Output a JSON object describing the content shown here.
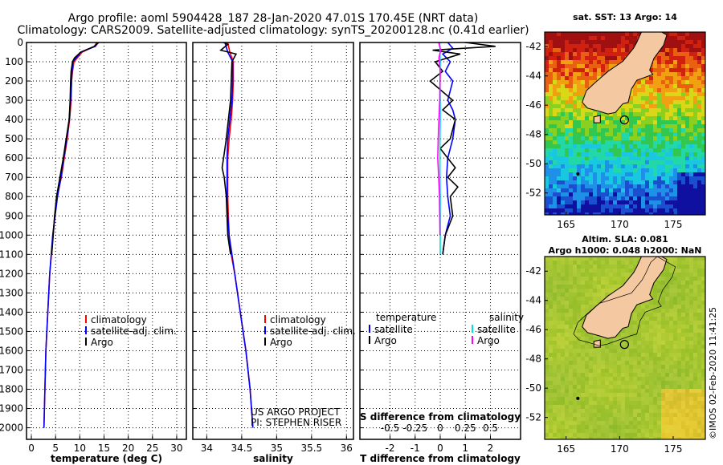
{
  "header": {
    "line1": "Argo profile: aoml 5904428_187 28-Jan-2020 47.01S 170.45E (NRT data)",
    "line2": "Climatology: CARS2009. Satellite-adjusted climatology: synTS_20200128.nc (0.41d earlier)"
  },
  "colors": {
    "climatology": "#ff0000",
    "satellite": "#0000ff",
    "argo": "#000000",
    "sat_salinity": "#00e0e0",
    "argo_salinity": "#ff00ff"
  },
  "credits": {
    "project": "US ARGO PROJECT",
    "pi": "PI: STEPHEN RISER"
  },
  "watermark": "©IMOS 02-Feb-2020 11:41:25",
  "chart_data": [
    {
      "id": "temperature",
      "type": "line",
      "xlabel": "temperature (deg C)",
      "xlim": [
        -1,
        32
      ],
      "xticks": [
        0,
        5,
        10,
        15,
        20,
        25,
        30
      ],
      "xtick_labels": [
        "0",
        "5",
        "10",
        "15",
        "20",
        "25",
        "30"
      ],
      "ylim": [
        0,
        2060
      ],
      "yticks": [
        0,
        100,
        200,
        300,
        400,
        500,
        600,
        700,
        800,
        900,
        1000,
        1100,
        1200,
        1300,
        1400,
        1500,
        1600,
        1700,
        1800,
        1900,
        2000
      ],
      "ytick_labels": [
        "0",
        "100",
        "200",
        "300",
        "400",
        "500",
        "600",
        "700",
        "800",
        "900",
        "1000",
        "1100",
        "1200",
        "1300",
        "1400",
        "1500",
        "1600",
        "1700",
        "1800",
        "1900",
        "2000"
      ],
      "grid": true,
      "legend": {
        "placement": "lower-right",
        "items": [
          "climatology",
          "satellite-adj. clim.",
          "Argo"
        ]
      },
      "series": [
        {
          "name": "climatology",
          "color": "#ff0000",
          "depth": [
            0,
            20,
            50,
            100,
            150,
            200,
            300,
            400,
            500,
            600,
            700,
            800,
            900,
            1000,
            1200,
            1400,
            1600,
            1800,
            2000
          ],
          "values": [
            13.5,
            13.0,
            10.5,
            8.8,
            8.5,
            8.3,
            8.2,
            7.9,
            7.4,
            6.8,
            6.2,
            5.3,
            4.8,
            4.5,
            3.8,
            3.4,
            3.0,
            2.8,
            2.6
          ]
        },
        {
          "name": "satellite-adj. clim.",
          "color": "#0000ff",
          "depth": [
            0,
            20,
            50,
            100,
            150,
            200,
            300,
            400,
            500,
            600,
            700,
            800,
            900,
            1000,
            1200,
            1400,
            1600,
            1800,
            2000
          ],
          "values": [
            13.8,
            13.2,
            10.2,
            8.6,
            8.4,
            8.3,
            8.1,
            7.8,
            7.3,
            6.7,
            6.1,
            5.4,
            4.9,
            4.4,
            3.8,
            3.4,
            3.0,
            2.8,
            2.6
          ]
        },
        {
          "name": "Argo",
          "color": "#000000",
          "depth": [
            0,
            20,
            50,
            80,
            100,
            150,
            200,
            300,
            400,
            500,
            600,
            700,
            800,
            900,
            1000,
            1100
          ],
          "values": [
            13.9,
            13.0,
            10.2,
            8.9,
            8.5,
            8.2,
            8.1,
            8.0,
            7.8,
            7.2,
            6.6,
            5.9,
            5.2,
            4.8,
            4.5,
            4.2
          ]
        }
      ]
    },
    {
      "id": "salinity",
      "type": "line",
      "xlabel": "salinity",
      "xlim": [
        33.8,
        36.1
      ],
      "xticks": [
        34,
        34.5,
        35,
        35.5,
        36
      ],
      "xtick_labels": [
        "34",
        "34.5",
        "35",
        "35.5",
        "36"
      ],
      "ylim": [
        0,
        2060
      ],
      "grid": true,
      "legend": {
        "placement": "lower-right",
        "items": [
          "climatology",
          "satellite-adj. clim.",
          "Argo"
        ]
      },
      "series": [
        {
          "name": "climatology",
          "color": "#ff0000",
          "depth": [
            0,
            50,
            100,
            200,
            300,
            400,
            500,
            600,
            700,
            800,
            900,
            1000,
            1100,
            1200,
            1400,
            1600,
            1800,
            2000
          ],
          "values": [
            34.3,
            34.33,
            34.38,
            34.38,
            34.37,
            34.35,
            34.32,
            34.3,
            34.3,
            34.3,
            34.31,
            34.32,
            34.35,
            34.4,
            34.48,
            34.56,
            34.62,
            34.66
          ]
        },
        {
          "name": "satellite-adj. clim.",
          "color": "#0000ff",
          "depth": [
            0,
            50,
            100,
            200,
            300,
            400,
            500,
            600,
            700,
            800,
            900,
            1000,
            1100,
            1200,
            1400,
            1600,
            1800,
            2000
          ],
          "values": [
            34.26,
            34.3,
            34.37,
            34.37,
            34.36,
            34.33,
            34.3,
            34.29,
            34.29,
            34.29,
            34.3,
            34.32,
            34.36,
            34.4,
            34.48,
            34.56,
            34.62,
            34.66
          ]
        },
        {
          "name": "Argo",
          "color": "#000000",
          "depth": [
            0,
            10,
            40,
            60,
            100,
            200,
            300,
            400,
            500,
            600,
            650,
            700,
            800,
            900,
            1000,
            1100
          ],
          "values": [
            34.24,
            34.3,
            34.2,
            34.42,
            34.36,
            34.35,
            34.34,
            34.31,
            34.28,
            34.24,
            34.22,
            34.25,
            34.28,
            34.29,
            34.3,
            34.34
          ]
        }
      ]
    },
    {
      "id": "difference",
      "type": "line",
      "xlabel": "T difference from climatology",
      "xlabel_top": "S difference from climatology",
      "xlim": [
        -3.2,
        3.2
      ],
      "xticks": [
        -2,
        -1,
        0,
        1,
        2
      ],
      "xtick_labels": [
        "-2",
        "-1",
        "0",
        "1",
        "2"
      ],
      "s_xtick_labels": [
        "-0.5",
        "-0.25",
        "0",
        "0.25",
        "0.5"
      ],
      "ylim": [
        0,
        2060
      ],
      "grid": true,
      "legend": {
        "placement": "lower-center",
        "temperature_title": "temperature",
        "salinity_title": "salinity",
        "temperature_items": [
          "satellite",
          "Argo"
        ],
        "salinity_items": [
          "satellite",
          "Argo"
        ]
      },
      "series": [
        {
          "name": "T satellite",
          "color": "#0000ff",
          "depth": [
            0,
            30,
            60,
            100,
            150,
            200,
            300,
            350,
            400,
            500,
            600,
            700,
            800,
            900,
            1000,
            1100
          ],
          "values": [
            0.3,
            0.5,
            0.1,
            0.4,
            0.2,
            0.5,
            0.3,
            0.5,
            0.6,
            0.5,
            0.3,
            0.25,
            0.3,
            0.4,
            0.2,
            0.1
          ]
        },
        {
          "name": "T Argo",
          "color": "#000000",
          "depth": [
            0,
            20,
            40,
            60,
            80,
            100,
            150,
            200,
            300,
            350,
            400,
            500,
            550,
            600,
            650,
            700,
            750,
            800,
            900,
            1000,
            1100
          ],
          "values": [
            1.0,
            2.2,
            -0.3,
            0.8,
            0.3,
            -0.2,
            0.1,
            -0.4,
            0.5,
            0.1,
            0.6,
            0.4,
            0.0,
            0.3,
            0.6,
            0.3,
            0.7,
            0.4,
            0.5,
            0.2,
            0.1
          ]
        },
        {
          "name": "S satellite",
          "color": "#00e0e0",
          "depth": [
            0,
            100,
            200,
            300,
            400,
            500,
            600,
            700,
            800,
            900,
            1000,
            1100
          ],
          "values": [
            -0.02,
            0.0,
            -0.01,
            0.0,
            0.0,
            -0.01,
            -0.01,
            -0.01,
            0.0,
            0.0,
            0.0,
            0.0
          ]
        },
        {
          "name": "S Argo",
          "color": "#ff00ff",
          "depth": [
            0,
            40,
            80,
            150,
            300,
            400,
            500,
            600,
            700,
            800,
            900,
            1000
          ],
          "values": [
            -0.06,
            0.02,
            -0.05,
            0.0,
            -0.02,
            -0.05,
            -0.08,
            -0.1,
            -0.06,
            -0.03,
            -0.02,
            -0.01
          ]
        }
      ]
    },
    {
      "id": "sst_map",
      "type": "heatmap",
      "title": "sat. SST: 13 Argo: 14",
      "xlim": [
        163,
        178
      ],
      "ylim": [
        -53.5,
        -41
      ],
      "xticks": [
        165,
        170,
        175
      ],
      "xtick_labels": [
        "165",
        "170",
        "175"
      ],
      "yticks": [
        -42,
        -44,
        -46,
        -48,
        -50,
        -52
      ],
      "ytick_labels": [
        "-42",
        "-44",
        "-46",
        "-48",
        "-50",
        "-52"
      ],
      "argo_position": [
        170.45,
        -47.01
      ]
    },
    {
      "id": "sla_map",
      "type": "heatmap",
      "title": "Altim. SLA: 0.081",
      "subtitle": "Argo h1000: 0.048 h2000: NaN",
      "xlim": [
        163,
        178
      ],
      "ylim": [
        -53.5,
        -41
      ],
      "xticks": [
        165,
        170,
        175
      ],
      "xtick_labels": [
        "165",
        "170",
        "175"
      ],
      "yticks": [
        -42,
        -44,
        -46,
        -48,
        -50,
        -52
      ],
      "ytick_labels": [
        "-42",
        "-44",
        "-46",
        "-48",
        "-50",
        "-52"
      ],
      "argo_position": [
        170.45,
        -47.01
      ]
    }
  ]
}
